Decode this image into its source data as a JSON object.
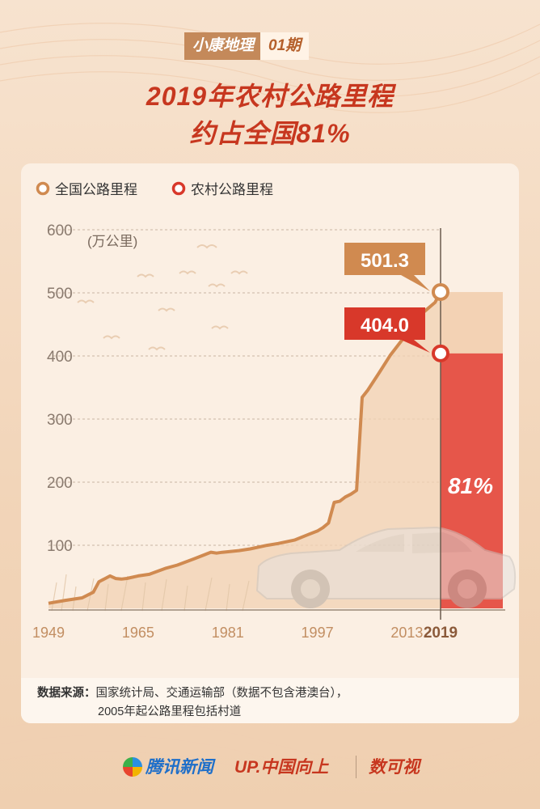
{
  "header": {
    "tag_left": "小康地理",
    "tag_right": "01期"
  },
  "title": {
    "line1": "2019年农村公路里程",
    "line2": "约占全国81%"
  },
  "legend": [
    {
      "label": "全国公路里程",
      "color": "#d08a50"
    },
    {
      "label": "农村公路里程",
      "color": "#d8382a"
    }
  ],
  "callouts": {
    "national": "501.3",
    "rural": "404.0",
    "percent": "81%"
  },
  "chart_data": {
    "type": "line",
    "ylabel": "(万公里)",
    "ylim": [
      0,
      600
    ],
    "yticks": [
      100,
      200,
      300,
      400,
      500,
      600
    ],
    "xticks": [
      "1949",
      "1965",
      "1981",
      "1997",
      "2013"
    ],
    "highlight_x": "2019",
    "xlim": [
      1949,
      2019
    ],
    "series": [
      {
        "name": "全国公路里程",
        "color": "#d08a50",
        "x": [
          1949,
          1952,
          1955,
          1957,
          1958,
          1960,
          1961,
          1962,
          1963,
          1965,
          1967,
          1970,
          1972,
          1975,
          1978,
          1979,
          1980,
          1983,
          1985,
          1988,
          1990,
          1993,
          1995,
          1997,
          1998,
          1999,
          2000,
          2001,
          2002,
          2003,
          2004,
          2005,
          2006,
          2008,
          2010,
          2012,
          2014,
          2016,
          2018,
          2019
        ],
        "y": [
          8.1,
          12.7,
          16.7,
          25.5,
          42.2,
          51.4,
          47.3,
          46.4,
          47.5,
          51.4,
          54.0,
          63.7,
          68.6,
          78.4,
          89.0,
          87.6,
          88.8,
          91.5,
          94.2,
          99.9,
          102.8,
          108.4,
          115.7,
          122.6,
          127.9,
          135.2,
          168.0,
          169.8,
          176.5,
          181.0,
          187.1,
          334.5,
          345.7,
          373.0,
          400.8,
          423.8,
          446.4,
          469.6,
          484.7,
          501.3
        ]
      }
    ],
    "bar_2019": {
      "national": 501.3,
      "rural": 404.0,
      "rural_share": "81%"
    }
  },
  "source": {
    "label": "数据来源：",
    "line1": "国家统计局、交通运输部（数据不包含港澳台），",
    "line2": "2005年起公路里程包括村道"
  },
  "footer": {
    "brand1": "腾讯新闻",
    "brand2": "UP.中国向上",
    "brand3": "数可视"
  }
}
